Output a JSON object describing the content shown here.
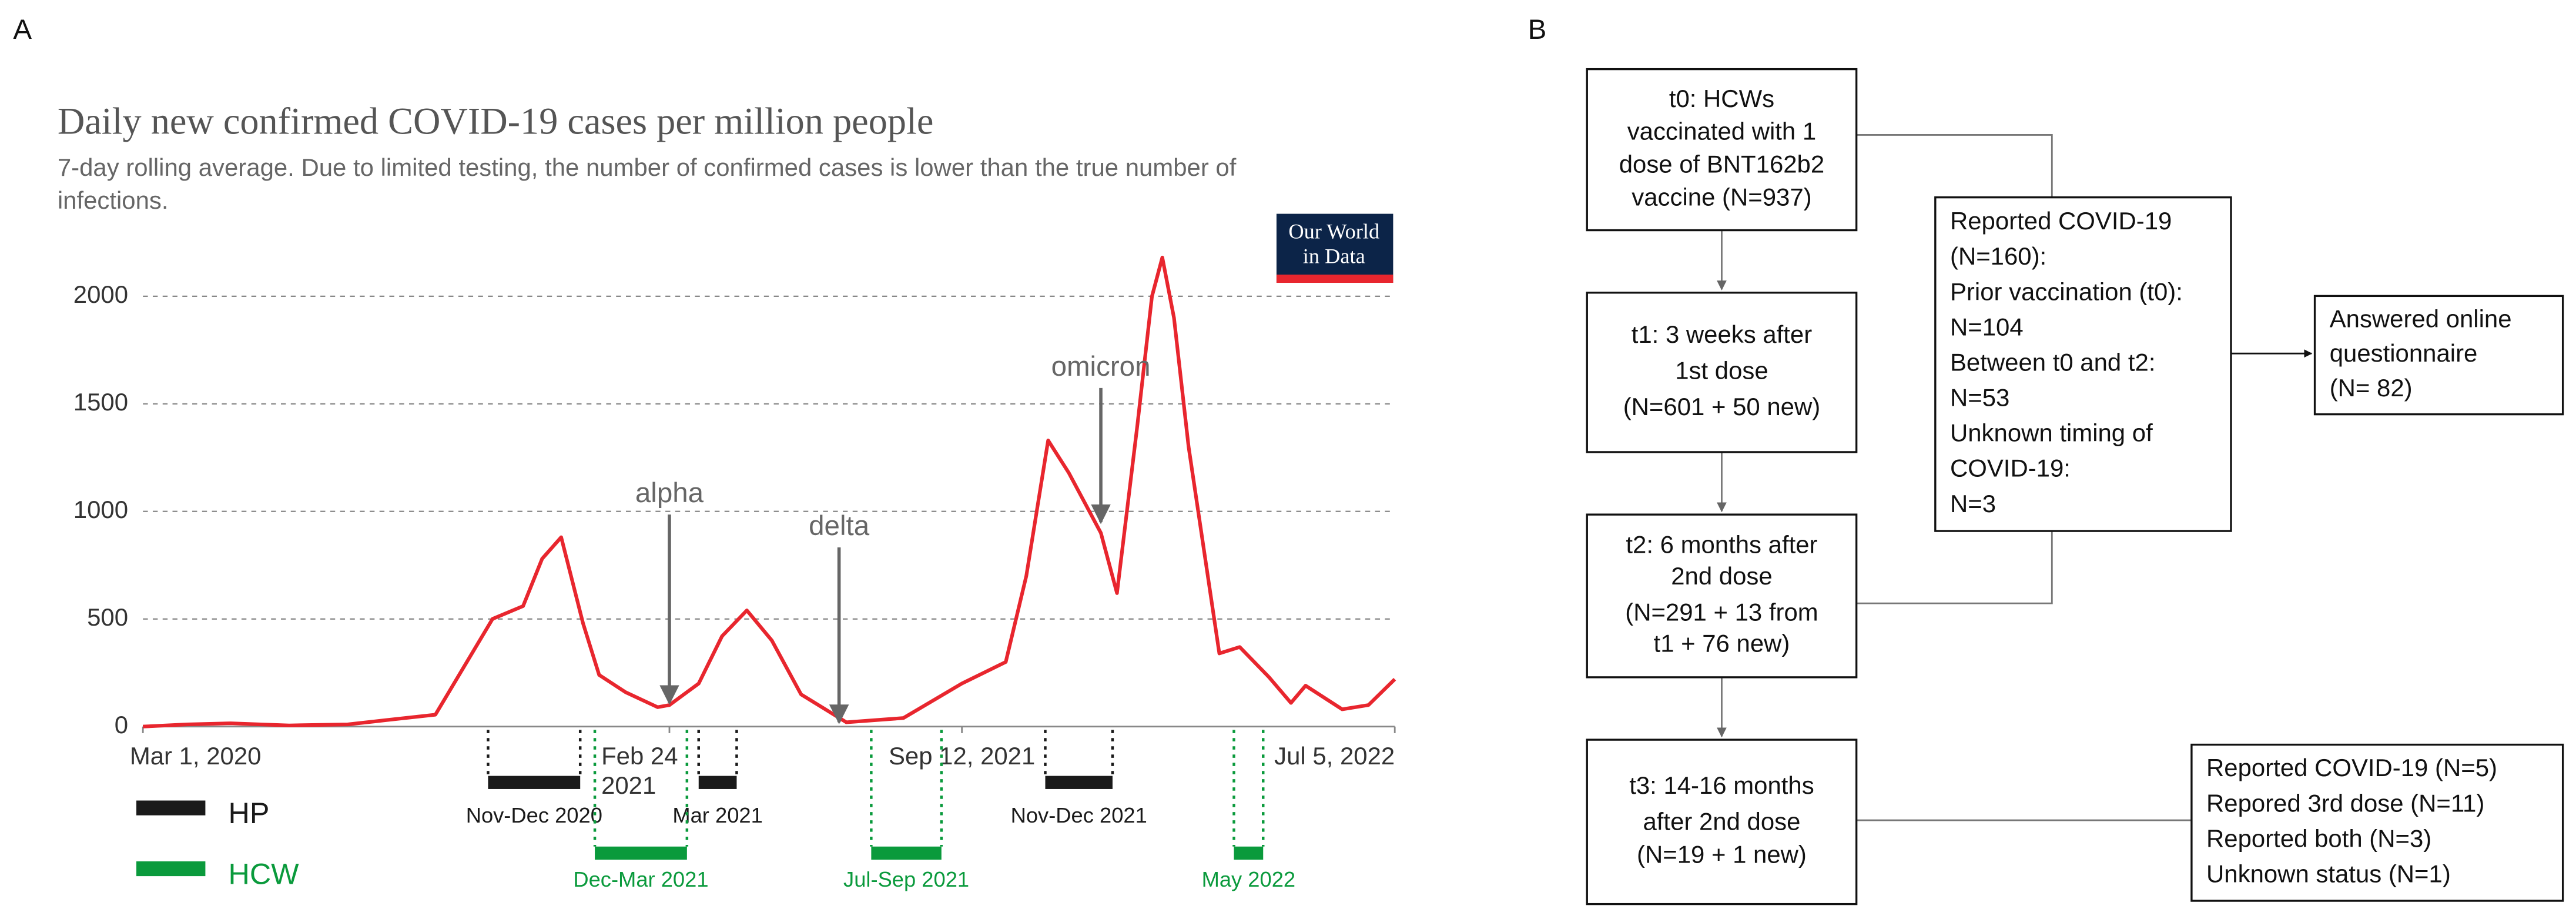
{
  "chart_data": {
    "type": "line",
    "panel": "A",
    "title": "Daily new confirmed COVID-19 cases per million people",
    "subtitle": [
      "7-day rolling average. Due to limited testing, the number of confirmed cases is lower than the true number of",
      "infections."
    ],
    "logo": [
      "Our World",
      "in Data"
    ],
    "color": "#e8262e",
    "x": [
      "2020-03-01",
      "2020-03-31",
      "2020-04-30",
      "2020-06-09",
      "2020-07-19",
      "2020-08-14",
      "2020-09-17",
      "2020-10-26",
      "2020-11-16",
      "2020-11-29",
      "2020-12-12",
      "2020-12-27",
      "2021-01-07",
      "2021-01-25",
      "2021-02-16",
      "2021-02-24",
      "2021-03-16",
      "2021-04-01",
      "2021-04-18",
      "2021-05-05",
      "2021-05-25",
      "2021-06-25",
      "2021-08-03",
      "2021-09-12",
      "2021-10-12",
      "2021-10-26",
      "2021-11-10",
      "2021-11-24",
      "2021-12-16",
      "2021-12-27",
      "2022-01-10",
      "2022-01-20",
      "2022-01-27",
      "2022-02-04",
      "2022-02-14",
      "2022-03-07",
      "2022-03-21",
      "2022-04-10",
      "2022-04-25",
      "2022-05-05",
      "2022-05-30",
      "2022-06-17",
      "2022-07-05"
    ],
    "values": [
      0,
      10,
      15,
      5,
      10,
      30,
      55,
      500,
      560,
      780,
      880,
      480,
      240,
      160,
      90,
      100,
      200,
      420,
      540,
      400,
      150,
      20,
      40,
      200,
      300,
      700,
      1330,
      1180,
      900,
      620,
      1400,
      2000,
      2180,
      1900,
      1300,
      340,
      370,
      230,
      110,
      190,
      80,
      100,
      220
    ],
    "xlim": [
      "2020-03-01",
      "2022-07-05"
    ],
    "xticks": [
      {
        "value": "2020-03-01",
        "label": "Mar 1, 2020"
      },
      {
        "value": "2021-02-24",
        "label": "Feb 24 2021"
      },
      {
        "value": "2021-09-12",
        "label": "Sep 12, 2021"
      },
      {
        "value": "2022-07-05",
        "label": "Jul 5, 2022"
      }
    ],
    "ylim": [
      0,
      2200
    ],
    "yticks": [
      0,
      500,
      1000,
      1500,
      2000
    ],
    "grid": true,
    "annotations": [
      {
        "text": "alpha",
        "x": "2021-02-24",
        "y": 110
      },
      {
        "text": "delta",
        "x": "2021-06-20",
        "y": 20
      },
      {
        "text": "omicron",
        "x": "2021-12-16",
        "y": 950
      }
    ],
    "periods": [
      {
        "name": "HP",
        "color": "#1a1a1a",
        "spans": [
          {
            "label": "Nov-Dec 2020",
            "start": "2020-10-23",
            "end": "2020-12-25"
          },
          {
            "label": "Mar 2021",
            "start": "2021-03-16",
            "end": "2021-04-11"
          },
          {
            "label": "Nov-Dec 2021",
            "start": "2021-11-08",
            "end": "2021-12-24"
          }
        ]
      },
      {
        "name": "HCW",
        "color": "#0a9a3c",
        "spans": [
          {
            "label": "Dec-Mar 2021",
            "start": "2021-01-04",
            "end": "2021-03-08"
          },
          {
            "label": "Jul-Sep 2021",
            "start": "2021-07-12",
            "end": "2021-08-29"
          },
          {
            "label": "May 2022",
            "start": "2022-03-17",
            "end": "2022-04-06"
          }
        ]
      }
    ]
  },
  "diagram": {
    "panel": "B",
    "nodes": [
      {
        "lines": [
          "t0: HCWs",
          "vaccinated with 1",
          "dose of BNT162b2",
          "vaccine (N=937)"
        ]
      },
      {
        "lines": [
          "t1: 3 weeks after",
          "1st dose",
          "(N=601 + 50 new)"
        ]
      },
      {
        "lines": [
          "t2: 6 months after",
          "2nd dose",
          "(N=291 + 13 from",
          "t1 + 76 new)"
        ]
      },
      {
        "lines": [
          "t3: 14-16 months",
          "after 2nd dose",
          "(N=19 + 1 new)"
        ]
      },
      {
        "lines": [
          "Reported COVID-19",
          "(N=160):",
          "Prior vaccination (t0):",
          "N=104",
          "Between t0 and t2:",
          "N=53",
          "Unknown timing of",
          "COVID-19:",
          "N=3"
        ]
      },
      {
        "lines": [
          "Answered online",
          "questionnaire",
          "(N= 82)"
        ]
      },
      {
        "lines": [
          "Reported COVID-19 (N=5)",
          "Repored 3rd dose (N=11)",
          "Reported both (N=3)",
          "Unknown status (N=1)"
        ]
      }
    ]
  }
}
